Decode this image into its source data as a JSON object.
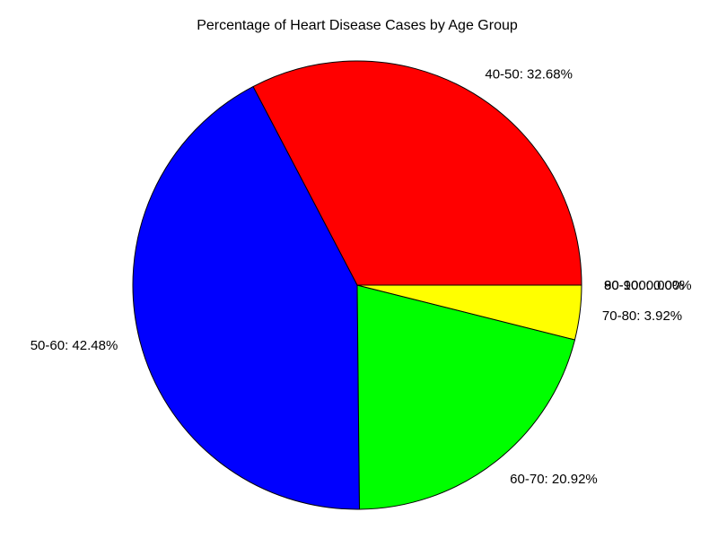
{
  "chart_data": {
    "type": "pie",
    "title": "Percentage of Heart Disease Cases by Age Group",
    "start_angle_deg": 0,
    "direction": "counterclockwise",
    "slices": [
      {
        "label": "40-50",
        "value": 32.68,
        "display": "40-50: 32.68%",
        "color": "#ff0000"
      },
      {
        "label": "50-60",
        "value": 42.48,
        "display": "50-60: 42.48%",
        "color": "#0000ff"
      },
      {
        "label": "60-70",
        "value": 20.92,
        "display": "60-70: 20.92%",
        "color": "#00ff00"
      },
      {
        "label": "70-80",
        "value": 3.92,
        "display": "70-80: 3.92%",
        "color": "#ffff00"
      },
      {
        "label": "80-90",
        "value": 0.0,
        "display": "80-90: 0.00%",
        "color": "#ff00ff"
      },
      {
        "label": "90-100",
        "value": 0.0,
        "display": "90-100: 0.00%",
        "color": "#00ffff"
      }
    ]
  }
}
